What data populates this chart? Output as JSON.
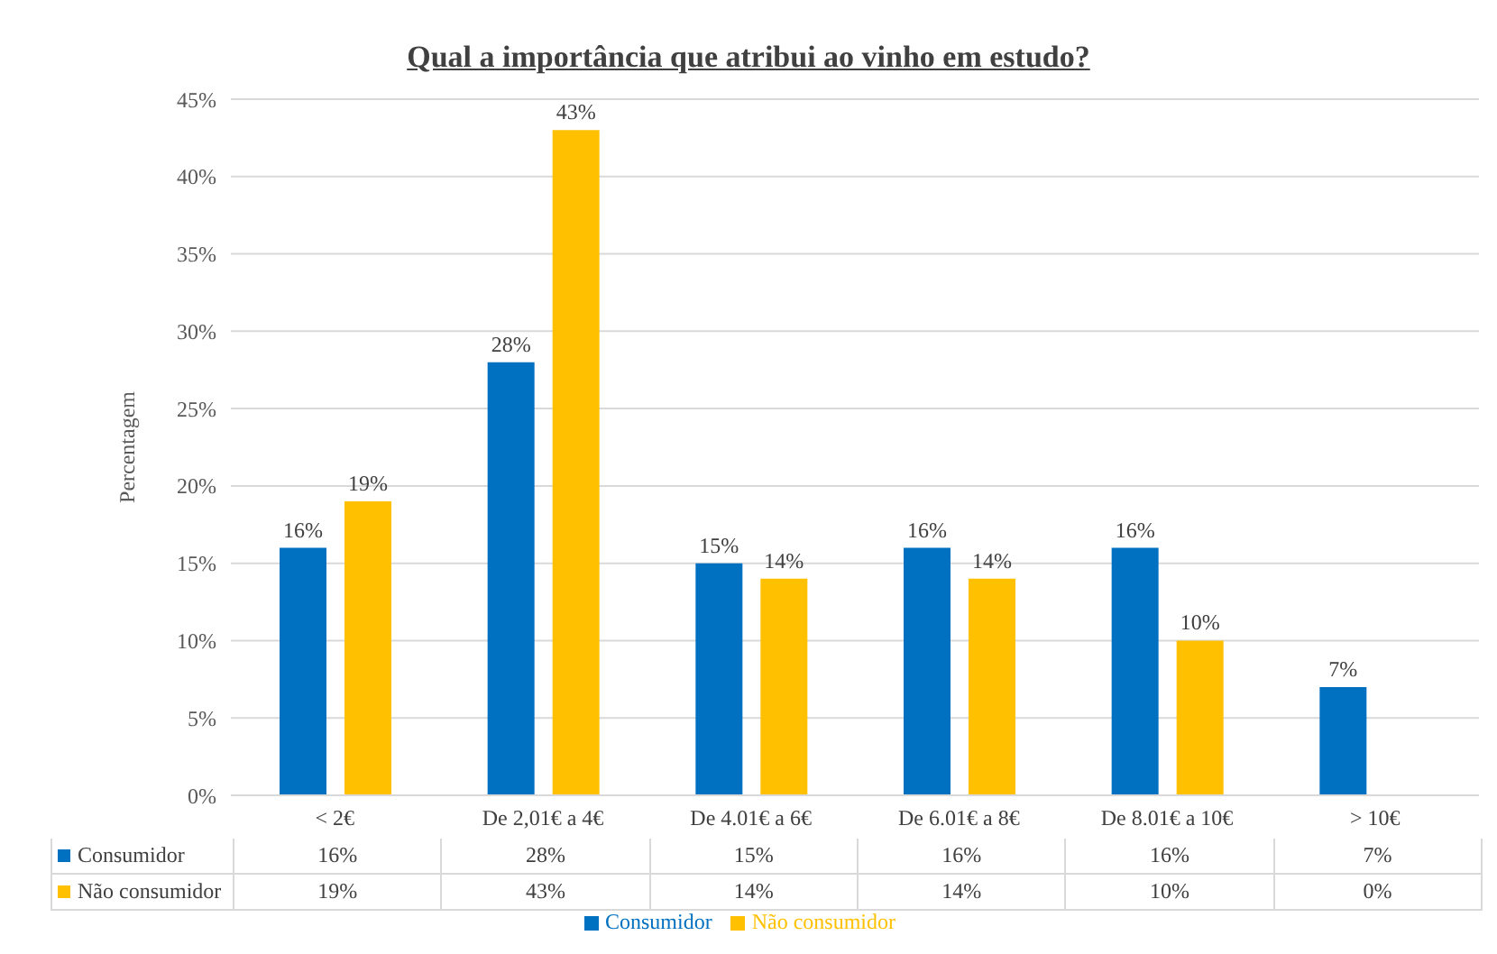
{
  "chart_data": {
    "type": "bar",
    "title": "Qual a importância que atribui ao vinho em estudo?",
    "ylabel": "Percentagem",
    "categories": [
      "< 2€",
      "De 2,01€ a 4€",
      "De 4.01€ a 6€",
      "De 6.01€ a 8€",
      "De 8.01€ a 10€",
      "> 10€"
    ],
    "series": [
      {
        "name": "Consumidor",
        "color": "#0070c0",
        "values": [
          16,
          28,
          15,
          16,
          16,
          7
        ],
        "value_labels": [
          "16%",
          "28%",
          "15%",
          "16%",
          "16%",
          "7%"
        ]
      },
      {
        "name": "Não consumidor",
        "color": "#ffc000",
        "values": [
          19,
          43,
          14,
          14,
          10,
          0
        ],
        "value_labels": [
          "19%",
          "43%",
          "14%",
          "14%",
          "10%",
          "0%"
        ]
      }
    ],
    "ylim": [
      0,
      45
    ],
    "yticks": [
      {
        "value": 0,
        "label": "0%"
      },
      {
        "value": 5,
        "label": "5%"
      },
      {
        "value": 10,
        "label": "10%"
      },
      {
        "value": 15,
        "label": "15%"
      },
      {
        "value": 20,
        "label": "20%"
      },
      {
        "value": 25,
        "label": "25%"
      },
      {
        "value": 30,
        "label": "30%"
      },
      {
        "value": 35,
        "label": "35%"
      },
      {
        "value": 40,
        "label": "40%"
      },
      {
        "value": 45,
        "label": "45%"
      }
    ],
    "grid": "y",
    "legend": "bottom"
  }
}
